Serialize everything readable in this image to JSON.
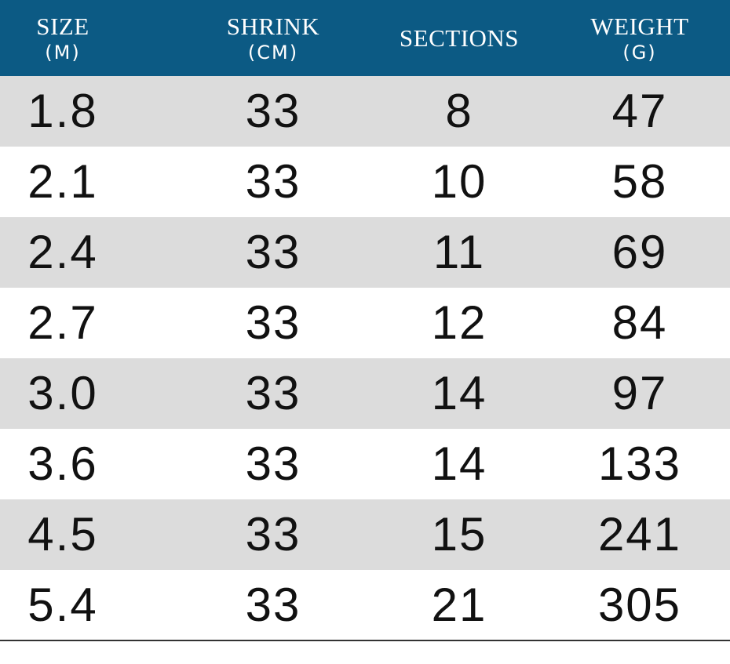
{
  "table": {
    "header": [
      {
        "title": "SIZE",
        "unit": "(M)"
      },
      {
        "title": "SHRINK",
        "unit": "(CM)"
      },
      {
        "title": "SECTIONS"
      },
      {
        "title": "WEIGHT",
        "unit": "(G)"
      }
    ],
    "rows": [
      [
        "1.8",
        "33",
        "8",
        "47"
      ],
      [
        "2.1",
        "33",
        "10",
        "58"
      ],
      [
        "2.4",
        "33",
        "11",
        "69"
      ],
      [
        "2.7",
        "33",
        "12",
        "84"
      ],
      [
        "3.0",
        "33",
        "14",
        "97"
      ],
      [
        "3.6",
        "33",
        "14",
        "133"
      ],
      [
        "4.5",
        "33",
        "15",
        "241"
      ],
      [
        "5.4",
        "33",
        "21",
        "305"
      ]
    ]
  }
}
